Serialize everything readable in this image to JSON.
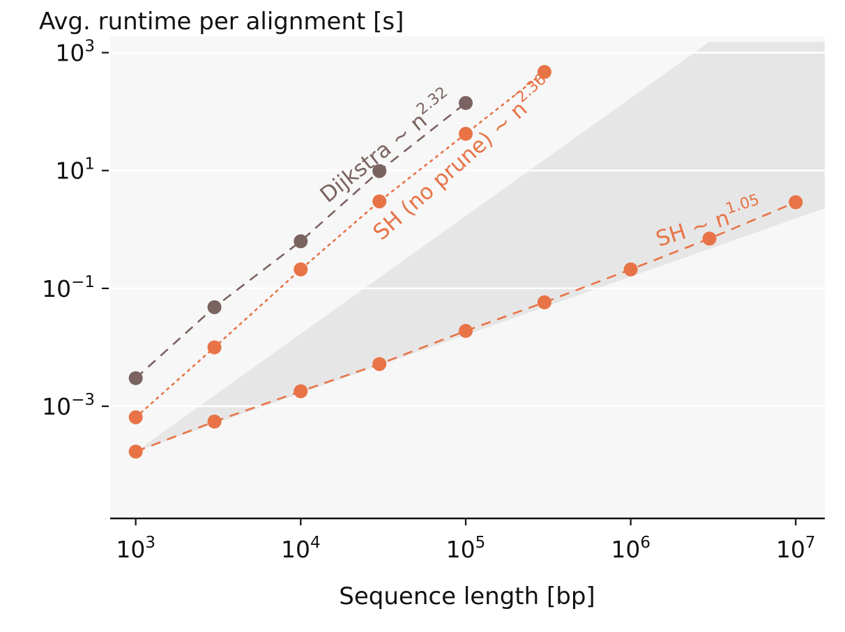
{
  "chart_data": {
    "type": "scatter",
    "xlabel": "Sequence length [bp]",
    "ylabel": "Avg. runtime per alignment [s]",
    "x_scale": "log",
    "y_scale": "log",
    "xlim": [
      700,
      15000000
    ],
    "ylim": [
      1.25e-05,
      1900
    ],
    "x_ticks": [
      {
        "value": 1000,
        "base": "10",
        "exp": "3"
      },
      {
        "value": 10000,
        "base": "10",
        "exp": "4"
      },
      {
        "value": 100000,
        "base": "10",
        "exp": "5"
      },
      {
        "value": 1000000,
        "base": "10",
        "exp": "6"
      },
      {
        "value": 10000000,
        "base": "10",
        "exp": "7"
      }
    ],
    "y_ticks": [
      {
        "value": 0.001,
        "base": "10",
        "exp": "−3"
      },
      {
        "value": 0.1,
        "base": "10",
        "exp": "−1"
      },
      {
        "value": 10,
        "base": "10",
        "exp": "1"
      },
      {
        "value": 1000,
        "base": "10",
        "exp": "3"
      }
    ],
    "grid": "horizontal",
    "colors": {
      "background": "#f7f7f7",
      "shade": "#e6e6e6",
      "grid": "#ffffff",
      "dijkstra": "#7a6360",
      "sh": "#e87346"
    },
    "shaded_regions": [
      {
        "name": "quadratic-region",
        "points": [
          [
            1000,
            0.00017
          ],
          [
            3000000,
            1530
          ],
          [
            15000000,
            1530
          ],
          [
            15000000,
            2.3
          ]
        ]
      }
    ],
    "series": [
      {
        "id": "dijkstra",
        "label_text": "Dijkstra ~ n",
        "label_exp": "2.32",
        "line_style": "dashed",
        "color": "#7a6360",
        "x": [
          1000,
          3000,
          10000,
          30000,
          100000
        ],
        "y": [
          0.003,
          0.048,
          0.63,
          9.8,
          140
        ]
      },
      {
        "id": "sh-no-prune",
        "label_text": "SH (no prune) ~ n",
        "label_exp": "2.36",
        "line_style": "dotted",
        "color": "#e87346",
        "x": [
          1000,
          3000,
          10000,
          30000,
          100000,
          300000
        ],
        "y": [
          0.00065,
          0.01,
          0.21,
          3.0,
          42,
          470
        ]
      },
      {
        "id": "sh",
        "label_text": "SH ~ n",
        "label_exp": "1.05",
        "line_style": "dashed",
        "color": "#e87346",
        "x": [
          1000,
          3000,
          10000,
          30000,
          100000,
          300000,
          1000000,
          3000000,
          10000000
        ],
        "y": [
          0.00017,
          0.00055,
          0.0018,
          0.0052,
          0.019,
          0.058,
          0.21,
          0.7,
          2.9
        ]
      }
    ]
  }
}
